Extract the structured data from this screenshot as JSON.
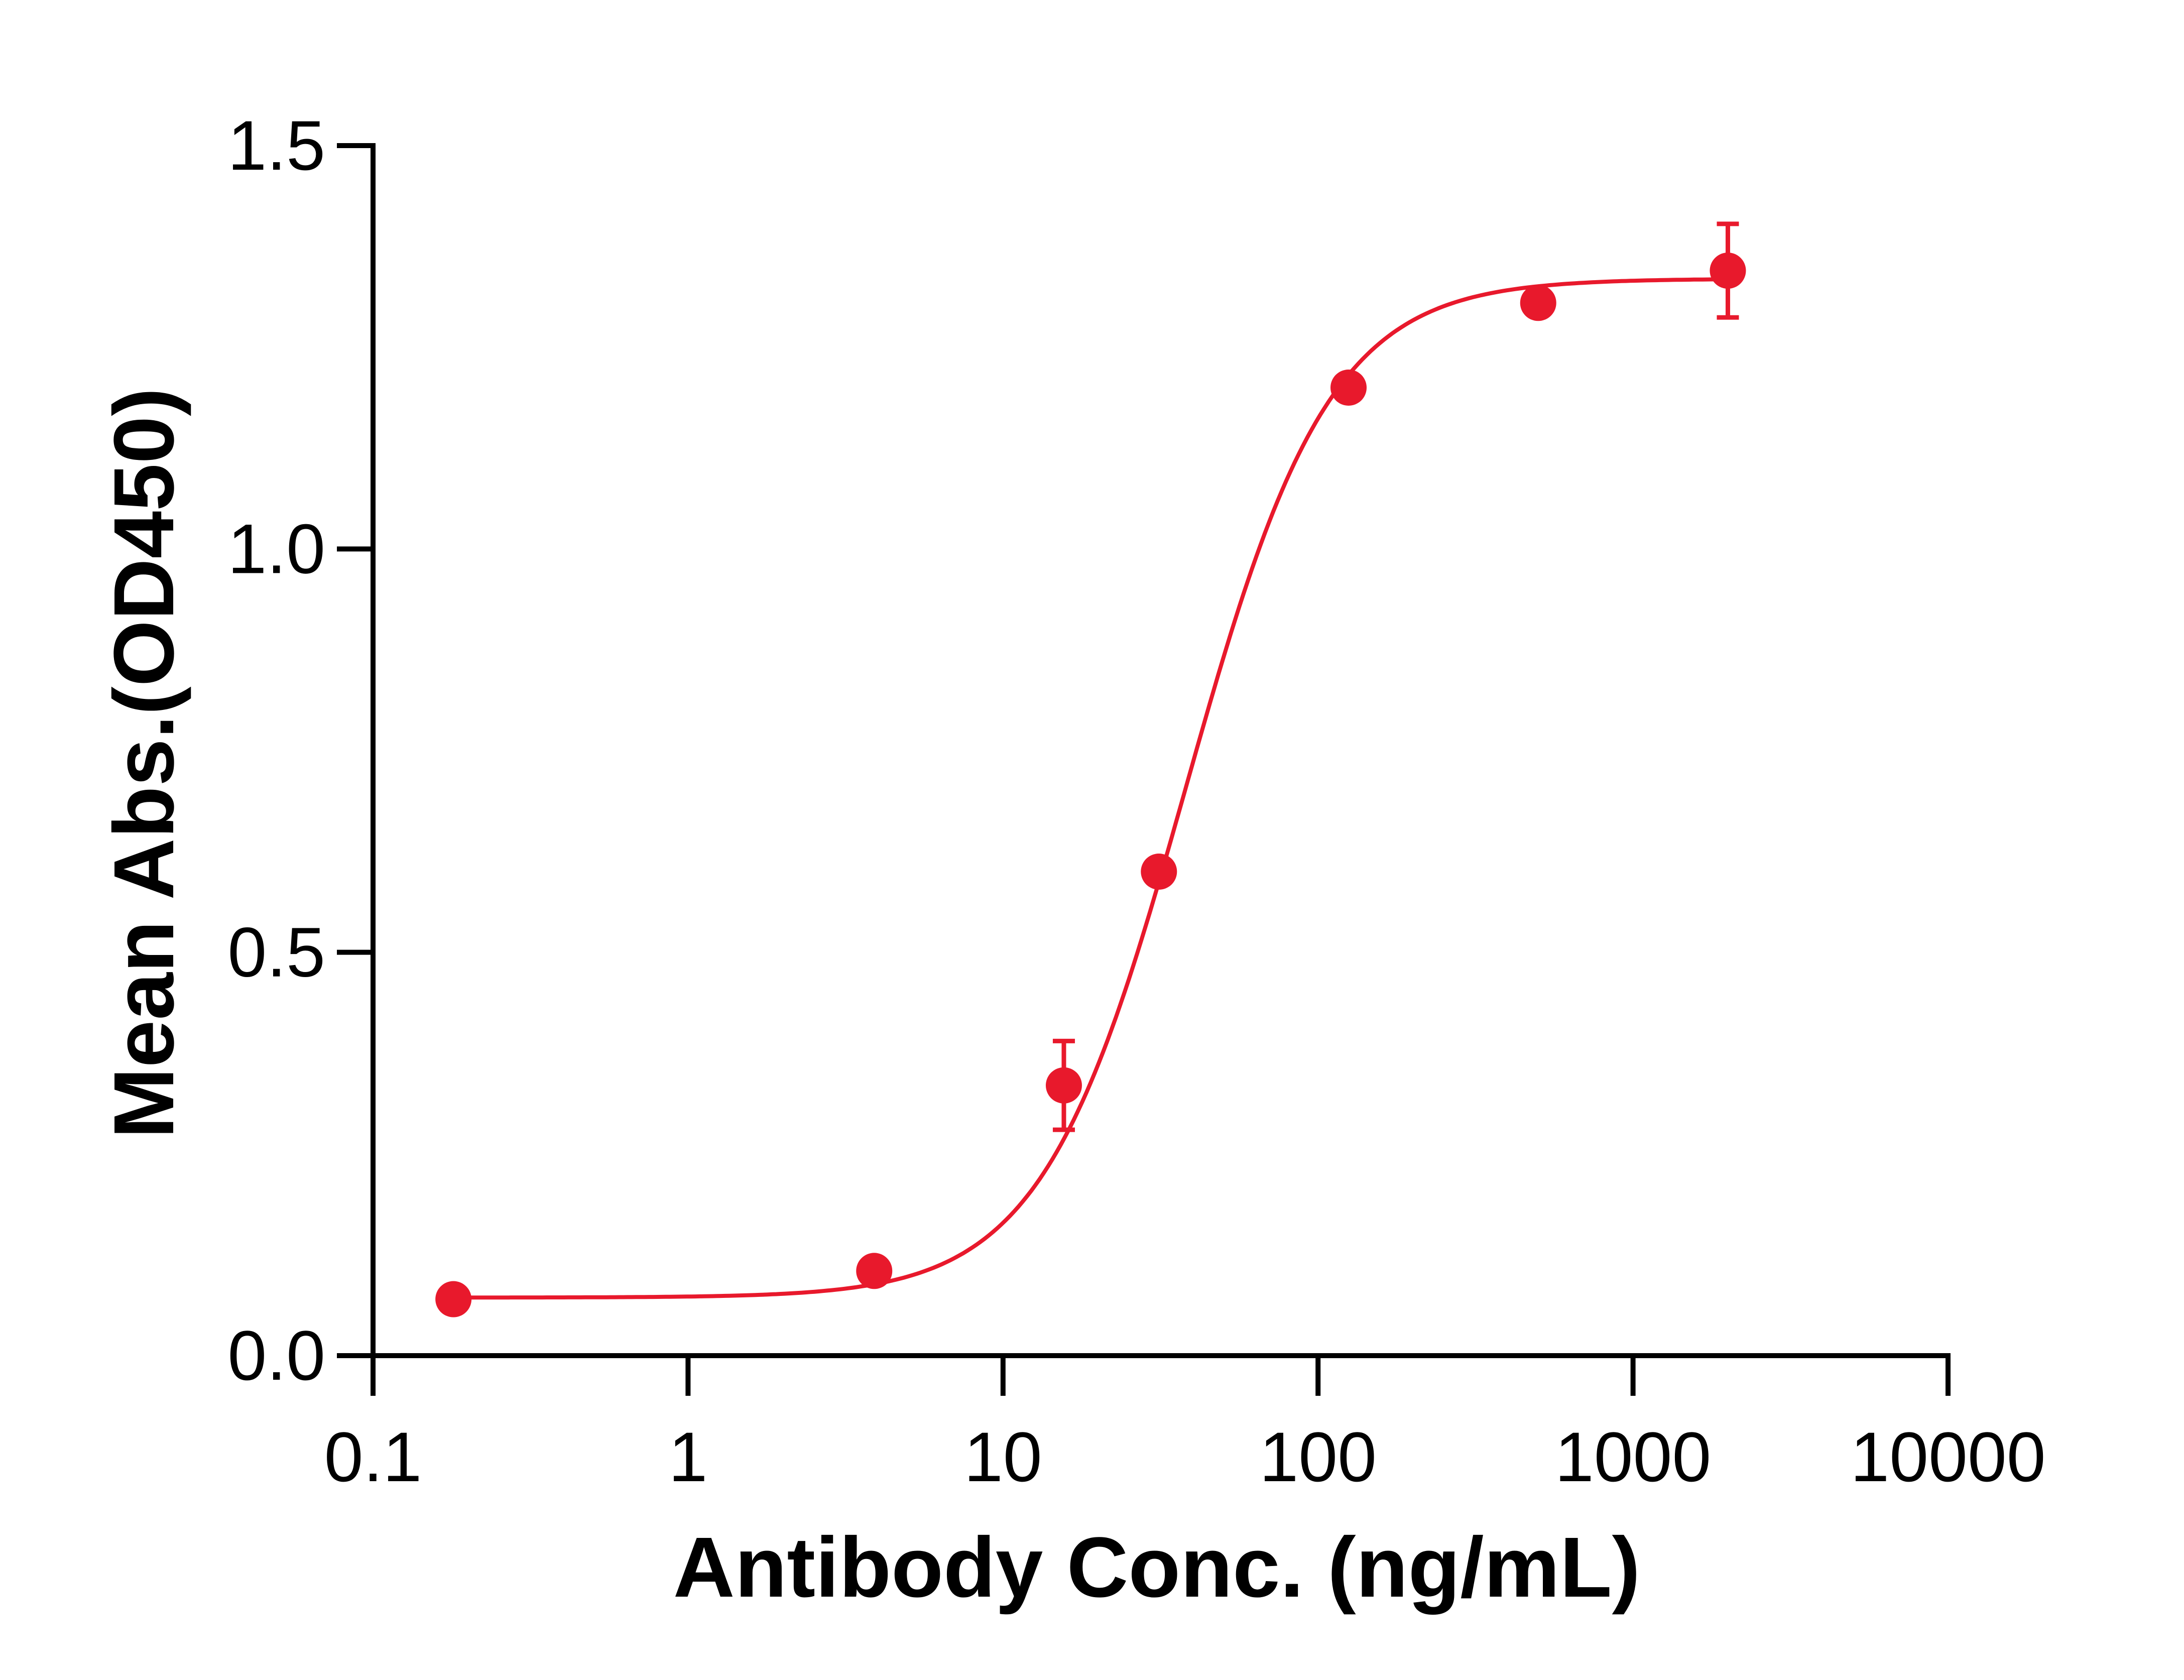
{
  "chart_data": {
    "type": "scatter",
    "title": "",
    "xlabel": "Antibody Conc. (ng/mL)",
    "ylabel": "Mean Abs.(OD450)",
    "x_scale": "log",
    "xlim": [
      0.1,
      10000
    ],
    "ylim": [
      0,
      1.5
    ],
    "x_ticks": [
      0.1,
      1,
      10,
      100,
      1000,
      10000
    ],
    "x_tick_labels": [
      "0.1",
      "1",
      "10",
      "100",
      "1000",
      "10000"
    ],
    "y_ticks": [
      0,
      0.5,
      1.0,
      1.5
    ],
    "y_tick_labels": [
      "0.0",
      "0.5",
      "1.0",
      "1.5"
    ],
    "grid": false,
    "legend": "none",
    "color": "#e8192c",
    "points": [
      {
        "x": 0.18,
        "y": 0.07
      },
      {
        "x": 3.9,
        "y": 0.105
      },
      {
        "x": 15.6,
        "y": 0.335,
        "err": 0.055
      },
      {
        "x": 31.25,
        "y": 0.6
      },
      {
        "x": 125,
        "y": 1.2
      },
      {
        "x": 500,
        "y": 1.305
      },
      {
        "x": 2000,
        "y": 1.345,
        "err": 0.058
      }
    ],
    "fit_curve": {
      "bottom": 0.072,
      "top": 1.335,
      "ec50": 38,
      "hill": 1.9
    }
  }
}
